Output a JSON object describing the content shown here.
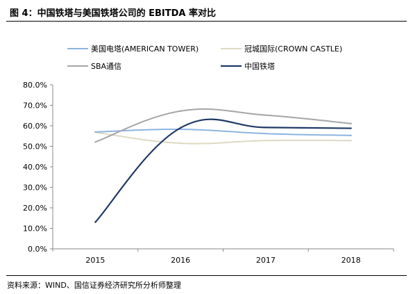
{
  "figure_title": "图 4：中国铁塔与美国铁塔公司的 EBITDA 率对比",
  "source_note": "资料来源：WIND、国信证券经济研究所分析师整理",
  "chart_data": {
    "type": "line",
    "categories": [
      "2015",
      "2016",
      "2017",
      "2018"
    ],
    "series": [
      {
        "name": "美国电塔(AMERICAN TOWER)",
        "color": "#8db4e2",
        "values": [
          0.57,
          0.583,
          0.562,
          0.553
        ]
      },
      {
        "name": "冠城国际(CROWN CASTLE)",
        "color": "#ddd9c3",
        "values": [
          0.568,
          0.515,
          0.528,
          0.528
        ]
      },
      {
        "name": "SBA通信",
        "color": "#a5a5a5",
        "values": [
          0.521,
          0.672,
          0.652,
          0.611
        ]
      },
      {
        "name": "中国铁塔",
        "color": "#1f3864",
        "values": [
          0.13,
          0.59,
          0.592,
          0.588
        ]
      }
    ],
    "ylim": [
      0,
      0.8
    ],
    "yticks": [
      0,
      0.1,
      0.2,
      0.3,
      0.4,
      0.5,
      0.6,
      0.7,
      0.8
    ],
    "ytick_labels": [
      "0.0%",
      "10.0%",
      "20.0%",
      "30.0%",
      "40.0%",
      "50.0%",
      "60.0%",
      "70.0%",
      "80.0%"
    ],
    "grid": false,
    "legend_placement": "top",
    "title": "",
    "xlabel": "",
    "ylabel": ""
  }
}
